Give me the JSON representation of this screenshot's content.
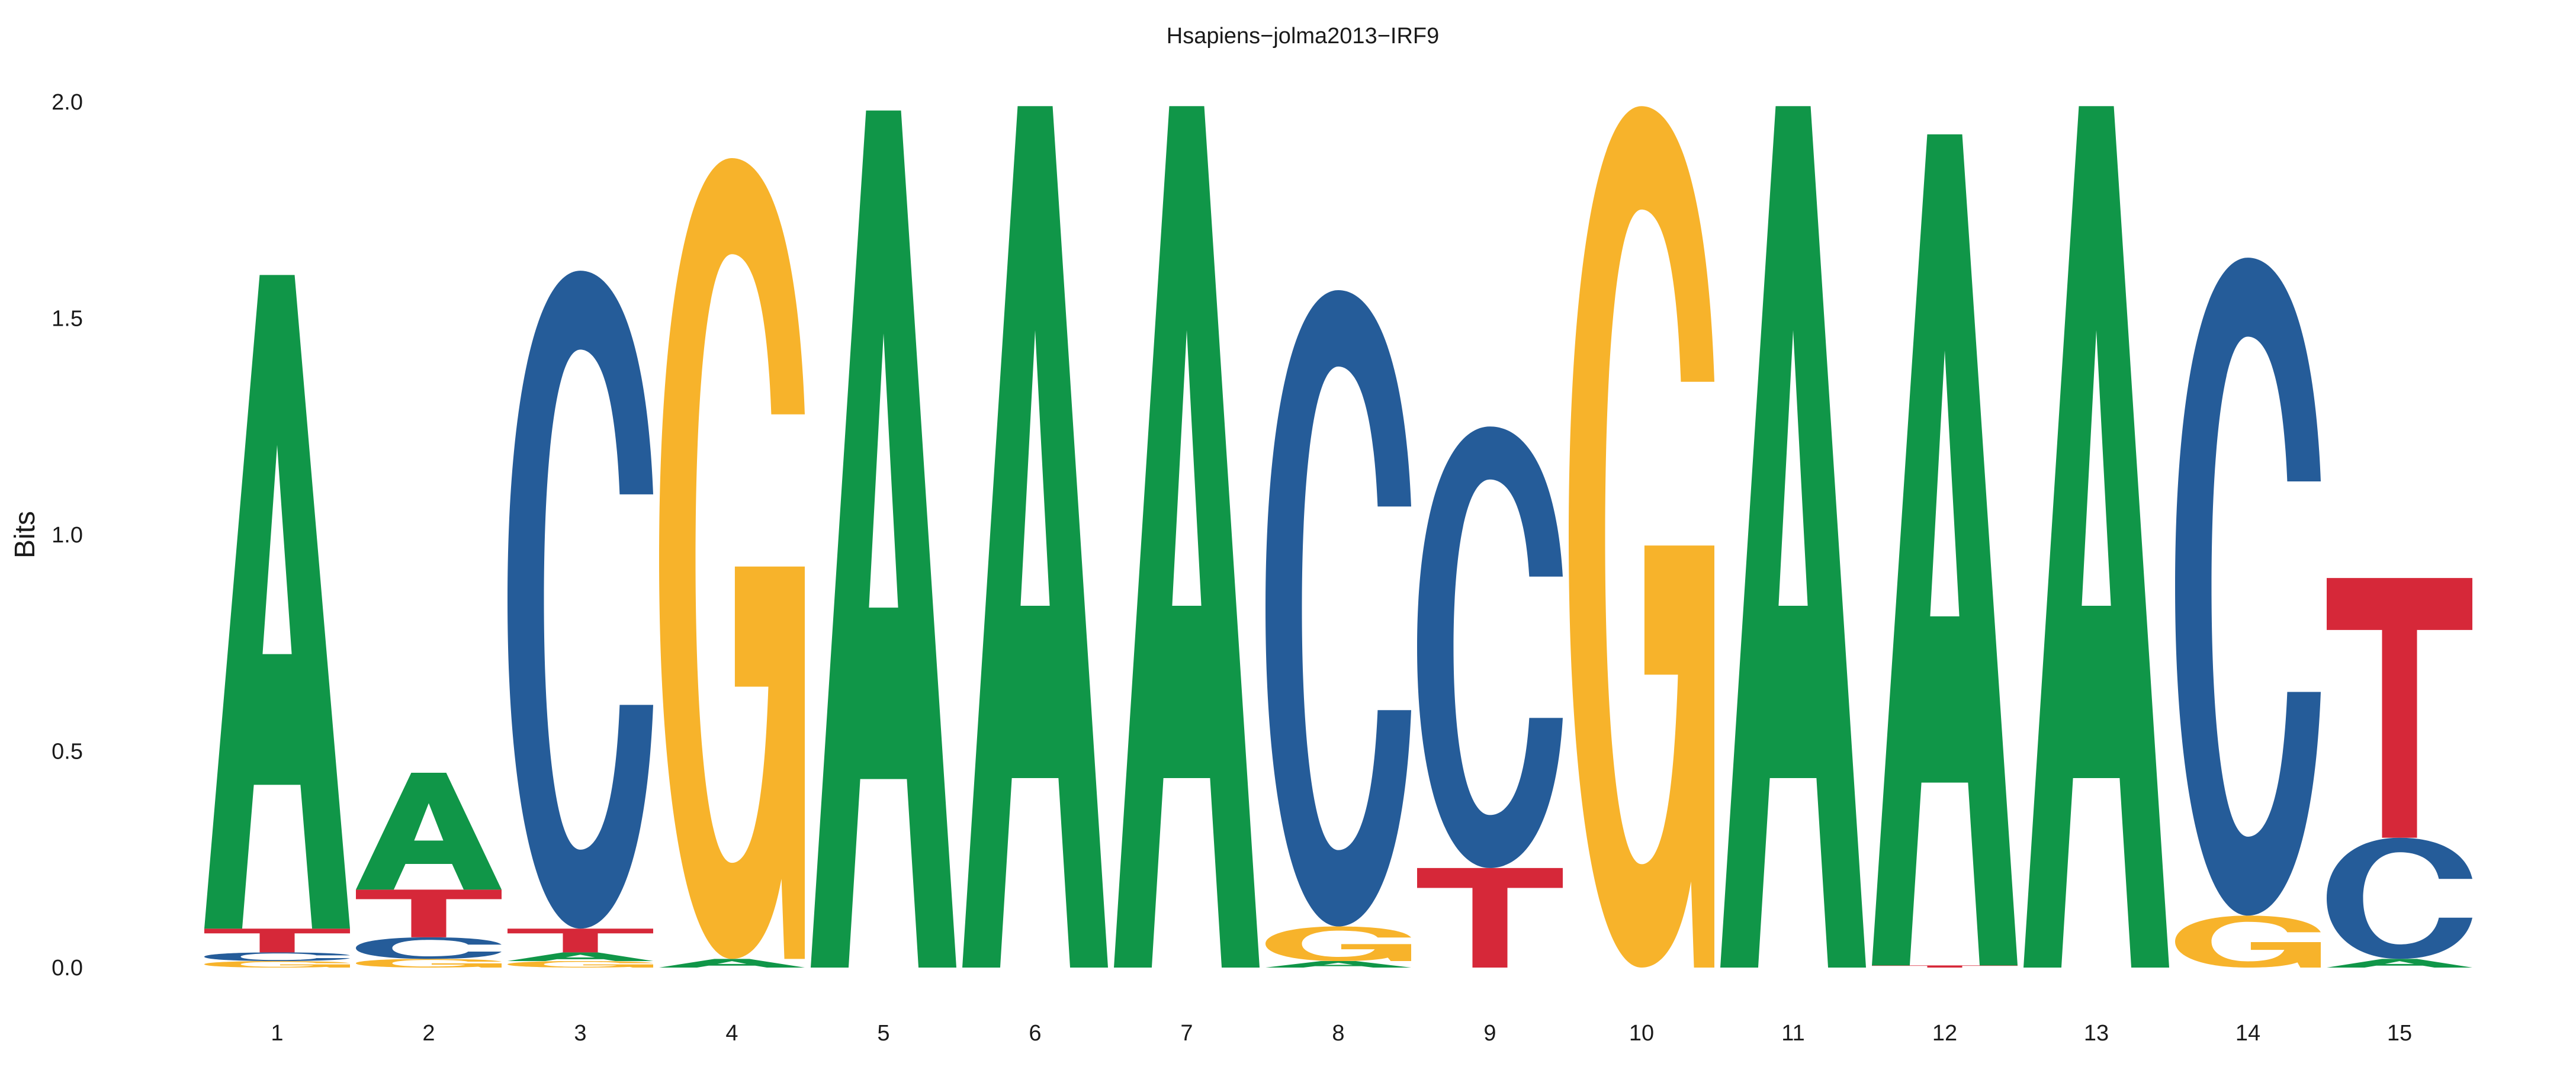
{
  "colors": {
    "A": "#109648",
    "C": "#255C99",
    "G": "#F7B32B",
    "T": "#D62839"
  },
  "chart_data": {
    "type": "sequence-logo",
    "title": "Hsapiens−jolma2013−IRF9",
    "xlabel": "",
    "ylabel": "Bits",
    "ylim": [
      0,
      2.0
    ],
    "yticks": [
      "0.0",
      "0.5",
      "1.0",
      "1.5",
      "2.0"
    ],
    "grid": false,
    "positions": [
      {
        "pos": "1",
        "stack": [
          [
            "G",
            0.015
          ],
          [
            "C",
            0.02
          ],
          [
            "T",
            0.055
          ],
          [
            "A",
            1.51
          ]
        ]
      },
      {
        "pos": "2",
        "stack": [
          [
            "G",
            0.02
          ],
          [
            "C",
            0.05
          ],
          [
            "T",
            0.11
          ],
          [
            "A",
            0.27
          ]
        ]
      },
      {
        "pos": "3",
        "stack": [
          [
            "G",
            0.015
          ],
          [
            "A",
            0.02
          ],
          [
            "T",
            0.055
          ],
          [
            "C",
            1.52
          ]
        ]
      },
      {
        "pos": "4",
        "stack": [
          [
            "A",
            0.02
          ],
          [
            "G",
            1.85
          ]
        ]
      },
      {
        "pos": "5",
        "stack": [
          [
            "A",
            1.98
          ]
        ]
      },
      {
        "pos": "6",
        "stack": [
          [
            "A",
            1.99
          ]
        ]
      },
      {
        "pos": "7",
        "stack": [
          [
            "A",
            1.99
          ]
        ]
      },
      {
        "pos": "8",
        "stack": [
          [
            "A",
            0.015
          ],
          [
            "G",
            0.08
          ],
          [
            "C",
            1.47
          ]
        ]
      },
      {
        "pos": "9",
        "stack": [
          [
            "T",
            0.23
          ],
          [
            "C",
            1.02
          ]
        ]
      },
      {
        "pos": "10",
        "stack": [
          [
            "G",
            1.99
          ]
        ]
      },
      {
        "pos": "11",
        "stack": [
          [
            "A",
            1.99
          ]
        ]
      },
      {
        "pos": "12",
        "stack": [
          [
            "T",
            0.005
          ],
          [
            "A",
            1.92
          ]
        ]
      },
      {
        "pos": "13",
        "stack": [
          [
            "A",
            1.99
          ]
        ]
      },
      {
        "pos": "14",
        "stack": [
          [
            "G",
            0.12
          ],
          [
            "C",
            1.52
          ]
        ]
      },
      {
        "pos": "15",
        "stack": [
          [
            "A",
            0.02
          ],
          [
            "C",
            0.28
          ],
          [
            "T",
            0.6
          ]
        ]
      }
    ]
  }
}
